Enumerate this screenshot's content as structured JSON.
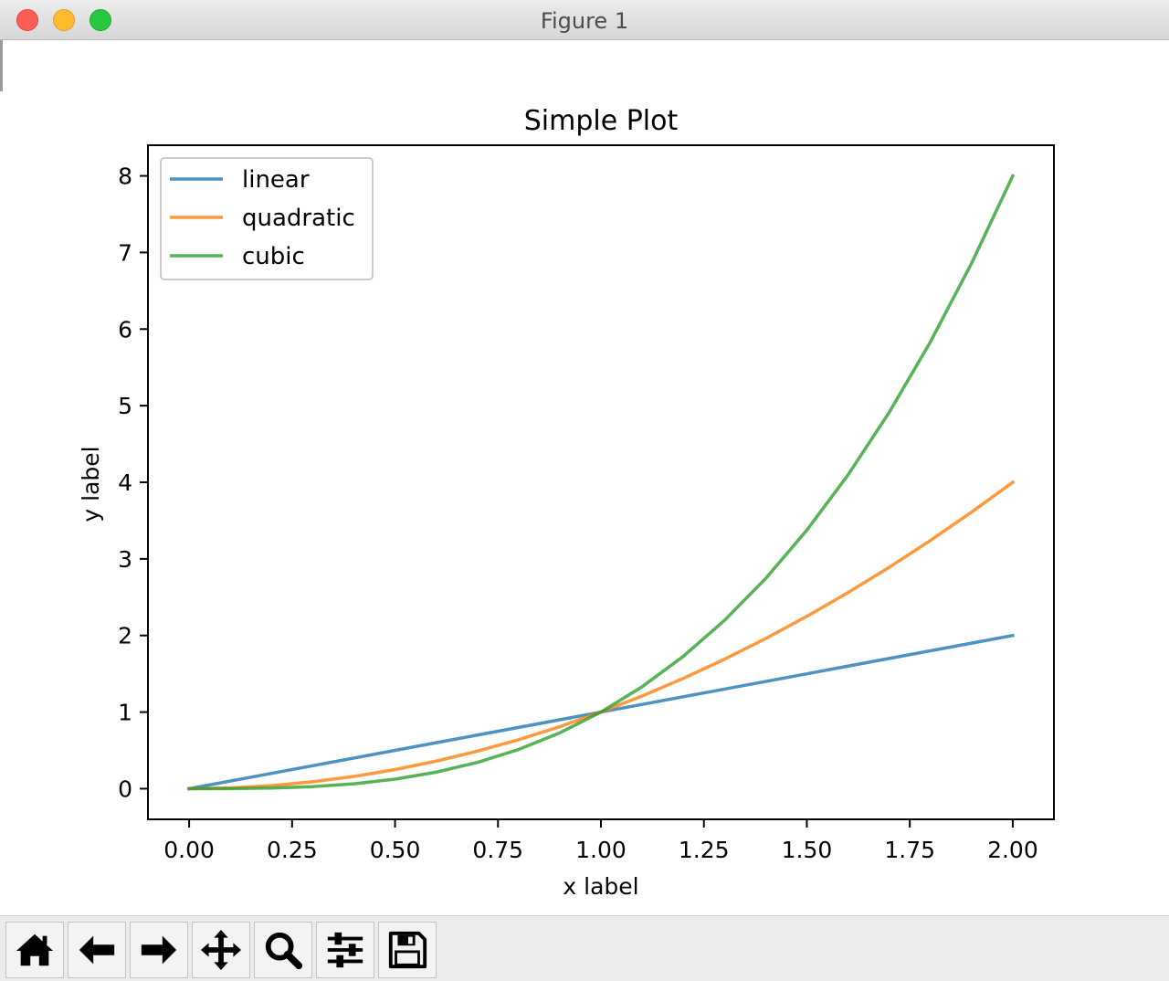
{
  "window": {
    "title": "Figure 1"
  },
  "toolbar": {
    "buttons": [
      {
        "name": "home-button",
        "icon": "home-icon"
      },
      {
        "name": "back-button",
        "icon": "arrow-left-icon"
      },
      {
        "name": "forward-button",
        "icon": "arrow-right-icon"
      },
      {
        "name": "pan-button",
        "icon": "move-icon"
      },
      {
        "name": "zoom-button",
        "icon": "magnifier-icon"
      },
      {
        "name": "subplots-button",
        "icon": "sliders-icon"
      },
      {
        "name": "save-button",
        "icon": "floppy-disk-icon"
      }
    ]
  },
  "chart_data": {
    "type": "line",
    "title": "Simple Plot",
    "xlabel": "x label",
    "ylabel": "y label",
    "xlim": [
      -0.1,
      2.1
    ],
    "ylim": [
      -0.4,
      8.4
    ],
    "xticks": [
      "0.00",
      "0.25",
      "0.50",
      "0.75",
      "1.00",
      "1.25",
      "1.50",
      "1.75",
      "2.00"
    ],
    "yticks": [
      "0",
      "1",
      "2",
      "3",
      "4",
      "5",
      "6",
      "7",
      "8"
    ],
    "grid": false,
    "legend_position": "upper-left",
    "x": [
      0,
      0.1,
      0.2,
      0.3,
      0.4,
      0.5,
      0.6,
      0.7,
      0.8,
      0.9,
      1.0,
      1.1,
      1.2,
      1.3,
      1.4,
      1.5,
      1.6,
      1.7,
      1.8,
      1.9,
      2.0
    ],
    "series": [
      {
        "name": "linear",
        "color": "#1f77b4",
        "values": [
          0,
          0.1,
          0.2,
          0.3,
          0.4,
          0.5,
          0.6,
          0.7,
          0.8,
          0.9,
          1.0,
          1.1,
          1.2,
          1.3,
          1.4,
          1.5,
          1.6,
          1.7,
          1.8,
          1.9,
          2.0
        ]
      },
      {
        "name": "quadratic",
        "color": "#ff7f0e",
        "values": [
          0,
          0.01,
          0.04,
          0.09,
          0.16,
          0.25,
          0.36,
          0.49,
          0.64,
          0.81,
          1.0,
          1.21,
          1.44,
          1.69,
          1.96,
          2.25,
          2.56,
          2.89,
          3.24,
          3.61,
          4.0
        ]
      },
      {
        "name": "cubic",
        "color": "#2ca02c",
        "values": [
          0,
          0.001,
          0.008,
          0.027,
          0.064,
          0.125,
          0.216,
          0.343,
          0.512,
          0.729,
          1.0,
          1.331,
          1.728,
          2.197,
          2.744,
          3.375,
          4.096,
          4.913,
          5.832,
          6.859,
          8.0
        ]
      }
    ]
  }
}
